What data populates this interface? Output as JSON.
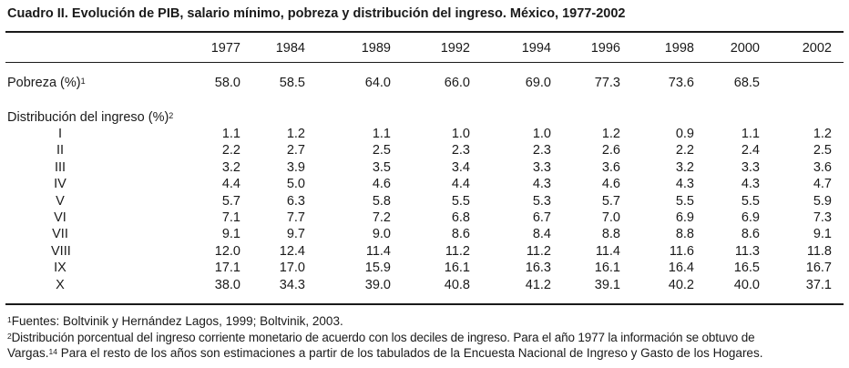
{
  "title": "Cuadro II. Evolución de PIB, salario mínimo, pobreza y distribución del ingreso. México, 1977-2002",
  "years": [
    "1977",
    "1984",
    "1989",
    "1992",
    "1994",
    "1996",
    "1998",
    "2000",
    "2002"
  ],
  "poverty": {
    "label": "Pobreza (%)",
    "footnote_mark": "1",
    "values": [
      "58.0",
      "58.5",
      "64.0",
      "66.0",
      "69.0",
      "77.3",
      "73.6",
      "68.5",
      ""
    ]
  },
  "distribution": {
    "label": "Distribución del ingreso (%)",
    "footnote_mark": "2",
    "rows": [
      {
        "decile": "I",
        "values": [
          "1.1",
          "1.2",
          "1.1",
          "1.0",
          "1.0",
          "1.2",
          "0.9",
          "1.1",
          "1.2"
        ]
      },
      {
        "decile": "II",
        "values": [
          "2.2",
          "2.7",
          "2.5",
          "2.3",
          "2.3",
          "2.6",
          "2.2",
          "2.4",
          "2.5"
        ]
      },
      {
        "decile": "III",
        "values": [
          "3.2",
          "3.9",
          "3.5",
          "3.4",
          "3.3",
          "3.6",
          "3.2",
          "3.3",
          "3.6"
        ]
      },
      {
        "decile": "IV",
        "values": [
          "4.4",
          "5.0",
          "4.6",
          "4.4",
          "4.3",
          "4.6",
          "4.3",
          "4.3",
          "4.7"
        ]
      },
      {
        "decile": "V",
        "values": [
          "5.7",
          "6.3",
          "5.8",
          "5.5",
          "5.3",
          "5.7",
          "5.5",
          "5.5",
          "5.9"
        ]
      },
      {
        "decile": "VI",
        "values": [
          "7.1",
          "7.7",
          "7.2",
          "6.8",
          "6.7",
          "7.0",
          "6.9",
          "6.9",
          "7.3"
        ]
      },
      {
        "decile": "VII",
        "values": [
          "9.1",
          "9.7",
          "9.0",
          "8.6",
          "8.4",
          "8.8",
          "8.8",
          "8.6",
          "9.1"
        ]
      },
      {
        "decile": "VIII",
        "values": [
          "12.0",
          "12.4",
          "11.4",
          "11.2",
          "11.2",
          "11.4",
          "11.6",
          "11.3",
          "11.8"
        ]
      },
      {
        "decile": "IX",
        "values": [
          "17.1",
          "17.0",
          "15.9",
          "16.1",
          "16.3",
          "16.1",
          "16.4",
          "16.5",
          "16.7"
        ]
      },
      {
        "decile": "X",
        "values": [
          "38.0",
          "34.3",
          "39.0",
          "40.8",
          "41.2",
          "39.1",
          "40.2",
          "40.0",
          "37.1"
        ]
      }
    ]
  },
  "footnotes": {
    "n1_mark": "1",
    "n1_text": "Fuentes: Boltvinik y Hernández Lagos, 1999; Boltvinik, 2003.",
    "n2_mark": "2",
    "n2_text_a": "Distribución porcentual del ingreso corriente monetario de acuerdo con los deciles de ingreso. Para el año 1977 la información se obtuvo de",
    "n2_text_b_pre": "Vargas.",
    "n2_mark_b": "14",
    "n2_text_b_post": " Para el resto de los años son estimaciones a partir de los tabulados de la Encuesta Nacional de Ingreso y Gasto de los Hogares."
  }
}
